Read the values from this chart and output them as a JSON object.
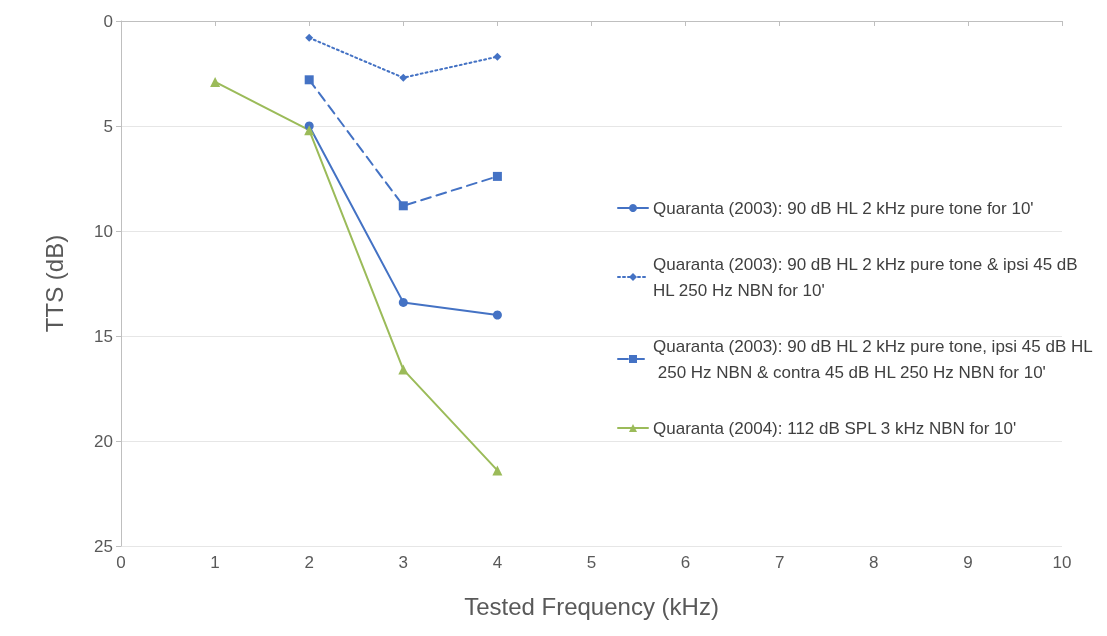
{
  "chart_data": {
    "type": "line",
    "xlabel": "Tested Frequency (kHz)",
    "ylabel": "TTS (dB)",
    "xlim": [
      0,
      10
    ],
    "xticks": [
      0,
      1,
      2,
      3,
      4,
      5,
      6,
      7,
      8,
      9,
      10
    ],
    "ylim": [
      25,
      0
    ],
    "yticks": [
      0,
      5,
      10,
      15,
      20,
      25
    ],
    "grid": "y",
    "legend": "right",
    "series": [
      {
        "name": "Quaranta (2003): 90 dB HL 2 kHz pure tone for 10'",
        "color": "#4472c4",
        "marker": "circle",
        "line_style": "solid",
        "x": [
          2,
          3,
          4
        ],
        "values": [
          5.0,
          13.4,
          14.0
        ]
      },
      {
        "name": "Quaranta (2003): 90 dB HL 2 kHz pure tone & ipsi 45 dB HL 250 Hz NBN for 10'",
        "color": "#4472c4",
        "marker": "diamond",
        "line_style": "dotted",
        "x": [
          2,
          3,
          4
        ],
        "values": [
          0.8,
          2.7,
          1.7
        ]
      },
      {
        "name": "Quaranta (2003): 90 dB HL 2 kHz pure tone, ipsi 45 dB HL 250 Hz NBN & contra 45 dB HL 250 Hz NBN for 10'",
        "color": "#4472c4",
        "marker": "square",
        "line_style": "dashed",
        "x": [
          2,
          3,
          4
        ],
        "values": [
          2.8,
          8.8,
          7.4
        ]
      },
      {
        "name": "Quaranta (2004): 112 dB SPL 3 kHz NBN for 10'",
        "color": "#9bbb59",
        "marker": "triangle",
        "line_style": "solid",
        "x": [
          1,
          2,
          3,
          4
        ],
        "values": [
          2.9,
          5.2,
          16.6,
          21.4
        ]
      }
    ]
  }
}
